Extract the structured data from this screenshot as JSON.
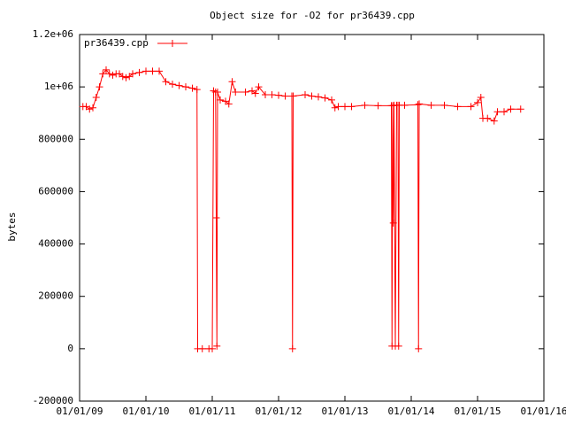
{
  "chart_data": {
    "type": "line",
    "title": "Object size for -O2 for pr36439.cpp",
    "ylabel": "bytes",
    "x": [
      2009.05,
      2009.1,
      2009.15,
      2009.2,
      2009.25,
      2009.3,
      2009.35,
      2009.4,
      2009.45,
      2009.5,
      2009.55,
      2009.6,
      2009.65,
      2009.7,
      2009.75,
      2009.8,
      2009.9,
      2010.0,
      2010.1,
      2010.2,
      2010.3,
      2010.4,
      2010.5,
      2010.6,
      2010.7,
      2010.77,
      2010.78,
      2010.85,
      2010.95,
      2011.0,
      2011.02,
      2011.05,
      2011.06,
      2011.07,
      2011.08,
      2011.12,
      2011.2,
      2011.25,
      2011.3,
      2011.35,
      2011.5,
      2011.6,
      2011.65,
      2011.7,
      2011.8,
      2011.9,
      2012.0,
      2012.1,
      2012.2,
      2012.21,
      2012.22,
      2012.4,
      2012.5,
      2012.6,
      2012.7,
      2012.8,
      2012.85,
      2012.9,
      2013.0,
      2013.1,
      2013.3,
      2013.5,
      2013.7,
      2013.71,
      2013.72,
      2013.73,
      2013.74,
      2013.76,
      2013.78,
      2013.8,
      2013.81,
      2013.82,
      2013.9,
      2014.1,
      2014.11,
      2014.12,
      2014.3,
      2014.5,
      2014.7,
      2014.9,
      2015.0,
      2015.05,
      2015.08,
      2015.15,
      2015.25,
      2015.3,
      2015.4,
      2015.5,
      2015.65
    ],
    "series": [
      {
        "name": "pr36439.cpp",
        "color": "#ff0000",
        "values": [
          925000,
          925000,
          915000,
          920000,
          960000,
          1000000,
          1050000,
          1065000,
          1050000,
          1045000,
          1050000,
          1050000,
          1040000,
          1035000,
          1040000,
          1050000,
          1055000,
          1060000,
          1060000,
          1060000,
          1020000,
          1010000,
          1005000,
          1000000,
          995000,
          990000,
          0,
          0,
          0,
          0,
          985000,
          980000,
          500000,
          10000,
          980000,
          950000,
          945000,
          935000,
          1020000,
          980000,
          980000,
          985000,
          975000,
          1000000,
          970000,
          970000,
          968000,
          965000,
          965000,
          0,
          965000,
          970000,
          965000,
          962000,
          958000,
          950000,
          920000,
          925000,
          925000,
          925000,
          930000,
          928000,
          928000,
          10000,
          928000,
          480000,
          930000,
          10000,
          930000,
          930000,
          10000,
          930000,
          930000,
          932000,
          0,
          935000,
          930000,
          930000,
          925000,
          925000,
          940000,
          960000,
          880000,
          880000,
          870000,
          905000,
          905000,
          915000,
          915000
        ]
      }
    ],
    "xlim": [
      2009,
      2016
    ],
    "xticks": [
      {
        "value": 2009,
        "label": "01/01/09"
      },
      {
        "value": 2010,
        "label": "01/01/10"
      },
      {
        "value": 2011,
        "label": "01/01/11"
      },
      {
        "value": 2012,
        "label": "01/01/12"
      },
      {
        "value": 2013,
        "label": "01/01/13"
      },
      {
        "value": 2014,
        "label": "01/01/14"
      },
      {
        "value": 2015,
        "label": "01/01/15"
      },
      {
        "value": 2016,
        "label": "01/01/16"
      }
    ],
    "ylim": [
      -200000,
      1200000
    ],
    "yticks": [
      -200000,
      0,
      200000,
      400000,
      600000,
      800000,
      {
        "value": 1000000,
        "label": "1e+06"
      },
      {
        "value": 1200000,
        "label": "1.2e+06"
      }
    ],
    "grid": false,
    "legend": "top-left"
  }
}
